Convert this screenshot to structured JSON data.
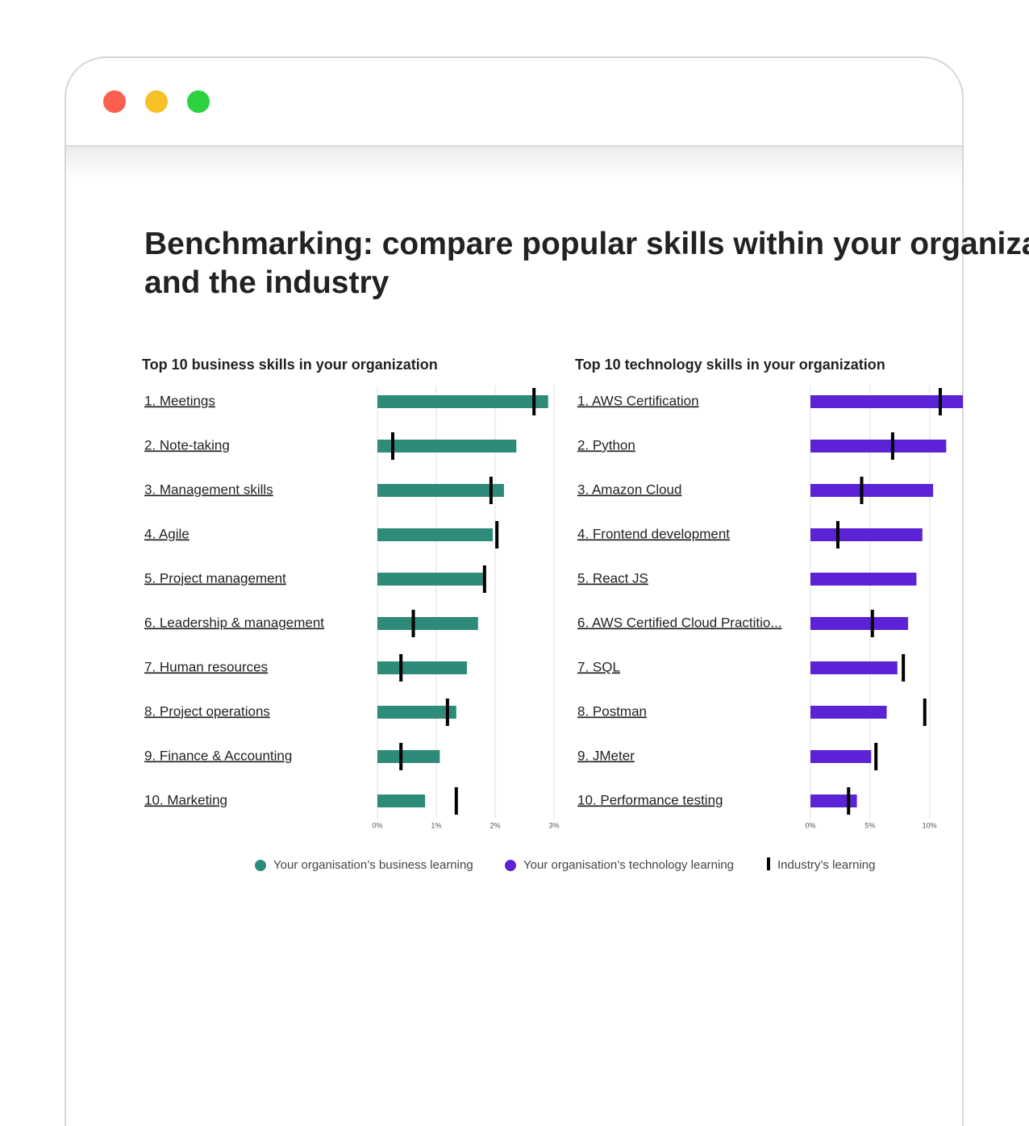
{
  "header": {
    "title": "Benchmarking: compare popular skills within your organization and the industry"
  },
  "chart_data": [
    {
      "type": "bar",
      "title": "Top 10 business skills in your organization",
      "categories": [
        "1. Meetings",
        "2. Note-taking",
        "3. Management skills",
        "4. Agile",
        "5. Project management",
        "6. Leadership & management",
        "7. Human resources",
        "8. Project operations",
        "9. Finance & Accounting",
        "10. Marketing"
      ],
      "series": [
        {
          "name": "Your organisation’s business learning",
          "color": "#2e8b7a",
          "values": [
            2.9,
            2.36,
            2.15,
            1.96,
            1.83,
            1.71,
            1.52,
            1.34,
            1.06,
            0.81
          ]
        },
        {
          "name": "Industry’s learning",
          "color": "#000000",
          "values": [
            2.66,
            0.26,
            1.93,
            2.03,
            1.82,
            0.61,
            0.4,
            1.19,
            0.4,
            1.34
          ]
        }
      ],
      "xlim": [
        0,
        3
      ],
      "xticks": [
        {
          "value": 0,
          "label": "0%"
        },
        {
          "value": 1,
          "label": "1%"
        },
        {
          "value": 2,
          "label": "2%"
        },
        {
          "value": 3,
          "label": "3%"
        }
      ],
      "grid": true
    },
    {
      "type": "bar",
      "title": "Top 10 technology skills in your organization",
      "categories": [
        "1. AWS Certification",
        "2. Python",
        "3. Amazon Cloud",
        "4. Frontend development",
        "5.  React JS",
        "6. AWS Certified Cloud Practitio...",
        "7. SQL",
        "8. Postman",
        "9. JMeter",
        "10. Performance testing"
      ],
      "series": [
        {
          "name": "Your organisation’s technology learning",
          "color": "#5b22d6",
          "values": [
            12.8,
            11.4,
            10.3,
            9.4,
            8.9,
            8.2,
            7.3,
            6.4,
            5.1,
            3.9
          ]
        },
        {
          "color": "#000000",
          "values": [
            10.9,
            6.9,
            4.3,
            2.3,
            null,
            5.2,
            7.8,
            9.6,
            5.5,
            3.2
          ]
        }
      ],
      "xlim": [
        0,
        12.8
      ],
      "xticks": [
        {
          "value": 0,
          "label": "0%"
        },
        {
          "value": 5,
          "label": "5%"
        },
        {
          "value": 10,
          "label": "10%"
        }
      ],
      "grid": true
    }
  ]
}
